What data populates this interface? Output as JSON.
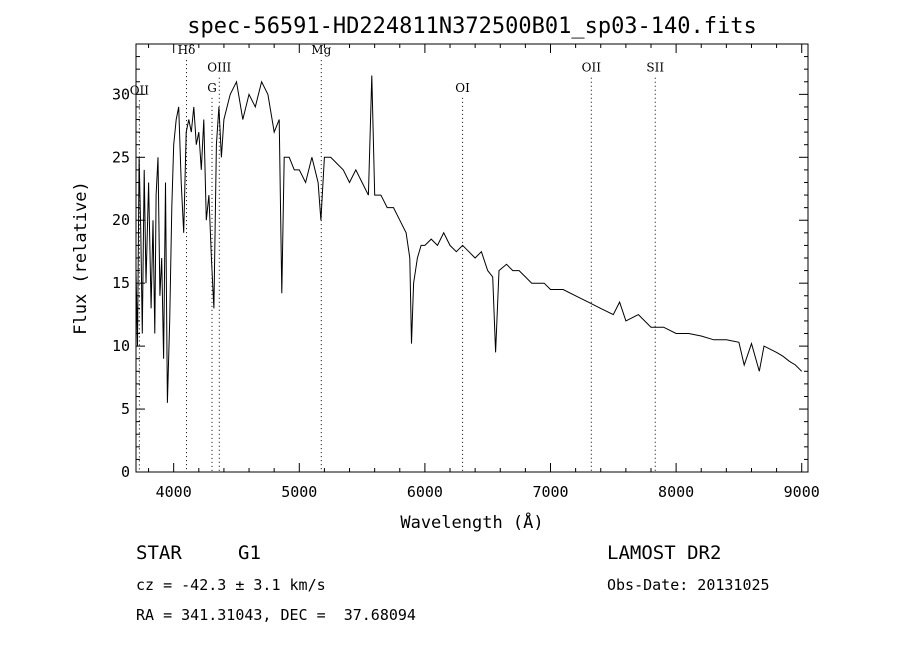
{
  "chart_data": {
    "type": "line",
    "title": "spec-56591-HD224811N372500B01_sp03-140.fits",
    "xlabel": "Wavelength (Å)",
    "ylabel": "Flux (relative)",
    "xlim": [
      3700,
      9050
    ],
    "ylim": [
      0,
      34
    ],
    "xticks": [
      4000,
      5000,
      6000,
      7000,
      8000,
      9000
    ],
    "yticks": [
      0,
      5,
      10,
      15,
      20,
      25,
      30
    ],
    "grid": false,
    "line_color": "#000000",
    "marker_color": "#000000",
    "series": [
      {
        "x": [
          3700,
          3712,
          3725,
          3738,
          3750,
          3765,
          3780,
          3800,
          3820,
          3835,
          3850,
          3860,
          3875,
          3890,
          3905,
          3920,
          3935,
          3950,
          3968,
          3985,
          4000,
          4020,
          4040,
          4060,
          4080,
          4100,
          4120,
          4140,
          4160,
          4180,
          4200,
          4220,
          4240,
          4260,
          4280,
          4300,
          4320,
          4340,
          4360,
          4380,
          4400,
          4450,
          4500,
          4550,
          4600,
          4650,
          4700,
          4750,
          4800,
          4840,
          4861,
          4880,
          4920,
          4960,
          5000,
          5050,
          5100,
          5150,
          5172,
          5200,
          5250,
          5300,
          5350,
          5400,
          5450,
          5500,
          5550,
          5577,
          5600,
          5650,
          5700,
          5750,
          5800,
          5850,
          5880,
          5893,
          5910,
          5940,
          5970,
          6000,
          6050,
          6100,
          6150,
          6200,
          6250,
          6300,
          6350,
          6400,
          6450,
          6500,
          6540,
          6563,
          6590,
          6650,
          6700,
          6750,
          6800,
          6850,
          6900,
          6950,
          7000,
          7100,
          7200,
          7300,
          7400,
          7500,
          7550,
          7600,
          7700,
          7800,
          7900,
          8000,
          8100,
          8200,
          8300,
          8400,
          8500,
          8542,
          8600,
          8662,
          8700,
          8800,
          8850,
          8900,
          8950,
          9000
        ],
        "y": [
          16,
          10,
          25,
          19,
          11,
          24,
          15,
          23,
          13,
          20,
          11,
          22,
          25,
          14,
          17,
          9,
          23,
          5.5,
          12,
          21,
          26,
          28,
          29,
          23,
          19,
          27,
          28,
          27,
          29,
          26,
          27,
          24,
          28,
          20,
          22,
          17,
          13,
          26,
          29,
          25,
          28,
          30,
          31,
          28,
          30,
          29,
          31,
          30,
          27,
          28,
          14.2,
          25,
          25,
          24,
          24,
          23,
          25,
          23,
          20,
          25,
          25,
          24.5,
          24,
          23,
          24,
          23,
          22,
          31.5,
          22,
          22,
          21,
          21,
          20,
          19,
          17,
          10.2,
          15,
          17,
          18,
          18,
          18.5,
          18,
          19,
          18,
          17.5,
          18,
          17.5,
          17,
          17.5,
          16,
          15.5,
          9.5,
          16,
          16.5,
          16,
          16,
          15.5,
          15,
          15,
          15,
          14.5,
          14.5,
          14,
          13.5,
          13,
          12.5,
          13.5,
          12,
          12.5,
          11.5,
          11.5,
          11,
          11,
          10.8,
          10.5,
          10.5,
          10.3,
          8.5,
          10.2,
          8,
          10,
          9.5,
          9.2,
          8.8,
          8.5,
          8
        ]
      }
    ],
    "lines": [
      {
        "label": "OII",
        "x": 3727,
        "y": 30
      },
      {
        "label": "Hδ",
        "x": 4102,
        "y": 33.2
      },
      {
        "label": "G",
        "x": 4305,
        "y": 30.2
      },
      {
        "label": "OIII",
        "x": 4363,
        "y": 31.8
      },
      {
        "label": "Mg",
        "x": 5175,
        "y": 33.2
      },
      {
        "label": "OI",
        "x": 6300,
        "y": 30.2
      },
      {
        "label": "OII",
        "x": 7325,
        "y": 31.8
      },
      {
        "label": "SII",
        "x": 7834,
        "y": 31.8
      }
    ]
  },
  "info": {
    "object_class": "STAR",
    "subclass": "G1",
    "survey": "LAMOST DR2",
    "redshift": "cz = -42.3 ± 3.1 km/s",
    "obs_date": "Obs-Date: 20131025",
    "coords": "RA = 341.31043, DEC =  37.68094"
  }
}
